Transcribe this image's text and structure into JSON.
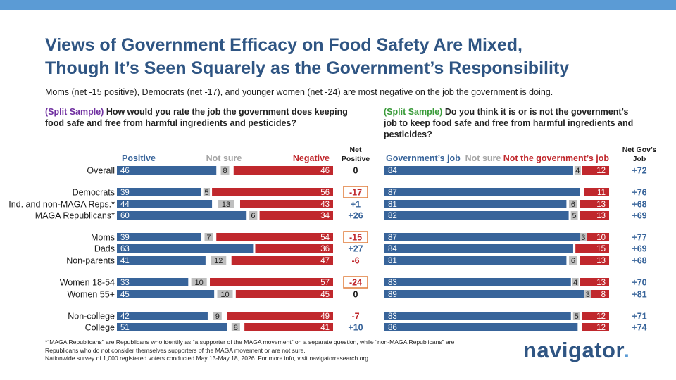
{
  "header": {
    "title_line1": "Views of Government Efficacy on Food Safety Are Mixed,",
    "title_line2": "Though It’s Seen Squarely as the Government’s Responsibility",
    "subtitle": "Moms (net -15 positive), Democrats (net -17), and younger women (net -24) are most negative on the job the government is doing."
  },
  "questions": {
    "left_tag": "(Split Sample)",
    "left_text": "How would you rate the job the government does keeping food safe and free from harmful ingredients and pesticides?",
    "right_tag": "(Split Sample)",
    "right_text": "Do you think it is or is not the government’s job to keep food safe and free from harmful ingredients and pesticides?"
  },
  "colors": {
    "blue": "#38649a",
    "red": "#c0282d",
    "gray": "#bfbfbf",
    "header_gray": "#a6a6a6",
    "box": "#e07b39",
    "title": "#2f5583"
  },
  "chart_data": [
    {
      "type": "bar",
      "stacked": true,
      "orientation": "horizontal",
      "series": [
        {
          "name": "Positive",
          "values": [
            46,
            39,
            44,
            60,
            39,
            63,
            41,
            33,
            45,
            42,
            51
          ]
        },
        {
          "name": "Not sure",
          "values": [
            8,
            5,
            13,
            6,
            7,
            null,
            12,
            10,
            10,
            9,
            8
          ]
        },
        {
          "name": "Negative",
          "values": [
            46,
            56,
            43,
            34,
            54,
            36,
            47,
            57,
            45,
            49,
            41
          ]
        }
      ],
      "net_header_line1": "Net",
      "net_header_line2": "Positive",
      "net": [
        "0",
        "-17",
        "+1",
        "+26",
        "-15",
        "+27",
        "-6",
        "-24",
        "0",
        "-7",
        "+10"
      ],
      "net_highlight": [
        false,
        true,
        false,
        false,
        true,
        false,
        false,
        true,
        false,
        false,
        false
      ]
    },
    {
      "type": "bar",
      "stacked": true,
      "orientation": "horizontal",
      "series": [
        {
          "name": "Government’s job",
          "values": [
            84,
            87,
            81,
            82,
            87,
            84,
            81,
            83,
            89,
            83,
            86
          ]
        },
        {
          "name": "Not sure",
          "values": [
            4,
            null,
            6,
            5,
            3,
            null,
            6,
            4,
            3,
            5,
            null
          ]
        },
        {
          "name": "Not the government’s job",
          "values": [
            12,
            11,
            13,
            13,
            10,
            15,
            13,
            13,
            8,
            12,
            12
          ]
        }
      ],
      "net_header_line1": "Net Gov’s",
      "net_header_line2": "Job",
      "net": [
        "+72",
        "+76",
        "+68",
        "+69",
        "+77",
        "+69",
        "+68",
        "+70",
        "+81",
        "+71",
        "+74"
      ]
    }
  ],
  "categories": [
    "Overall",
    "Democrats",
    "Ind. and non-MAGA Reps.*",
    "MAGA Republicans*",
    "Moms",
    "Dads",
    "Non-parents",
    "Women 18-54",
    "Women 55+",
    "Non-college",
    "College"
  ],
  "footnote": {
    "line1": "*“MAGA Republicans” are Republicans who identify as “a supporter of the MAGA movement” on a separate question, while “non-MAGA Republicans” are",
    "line2": "Republicans who do not consider themselves supporters of the MAGA movement or are not sure.",
    "line3": "Nationwide survey of 1,000 registered voters conducted May 13-May 18, 2026. For more info, visit navigatorresearch.org."
  },
  "logo": {
    "text": "navigator",
    "dot": "."
  }
}
